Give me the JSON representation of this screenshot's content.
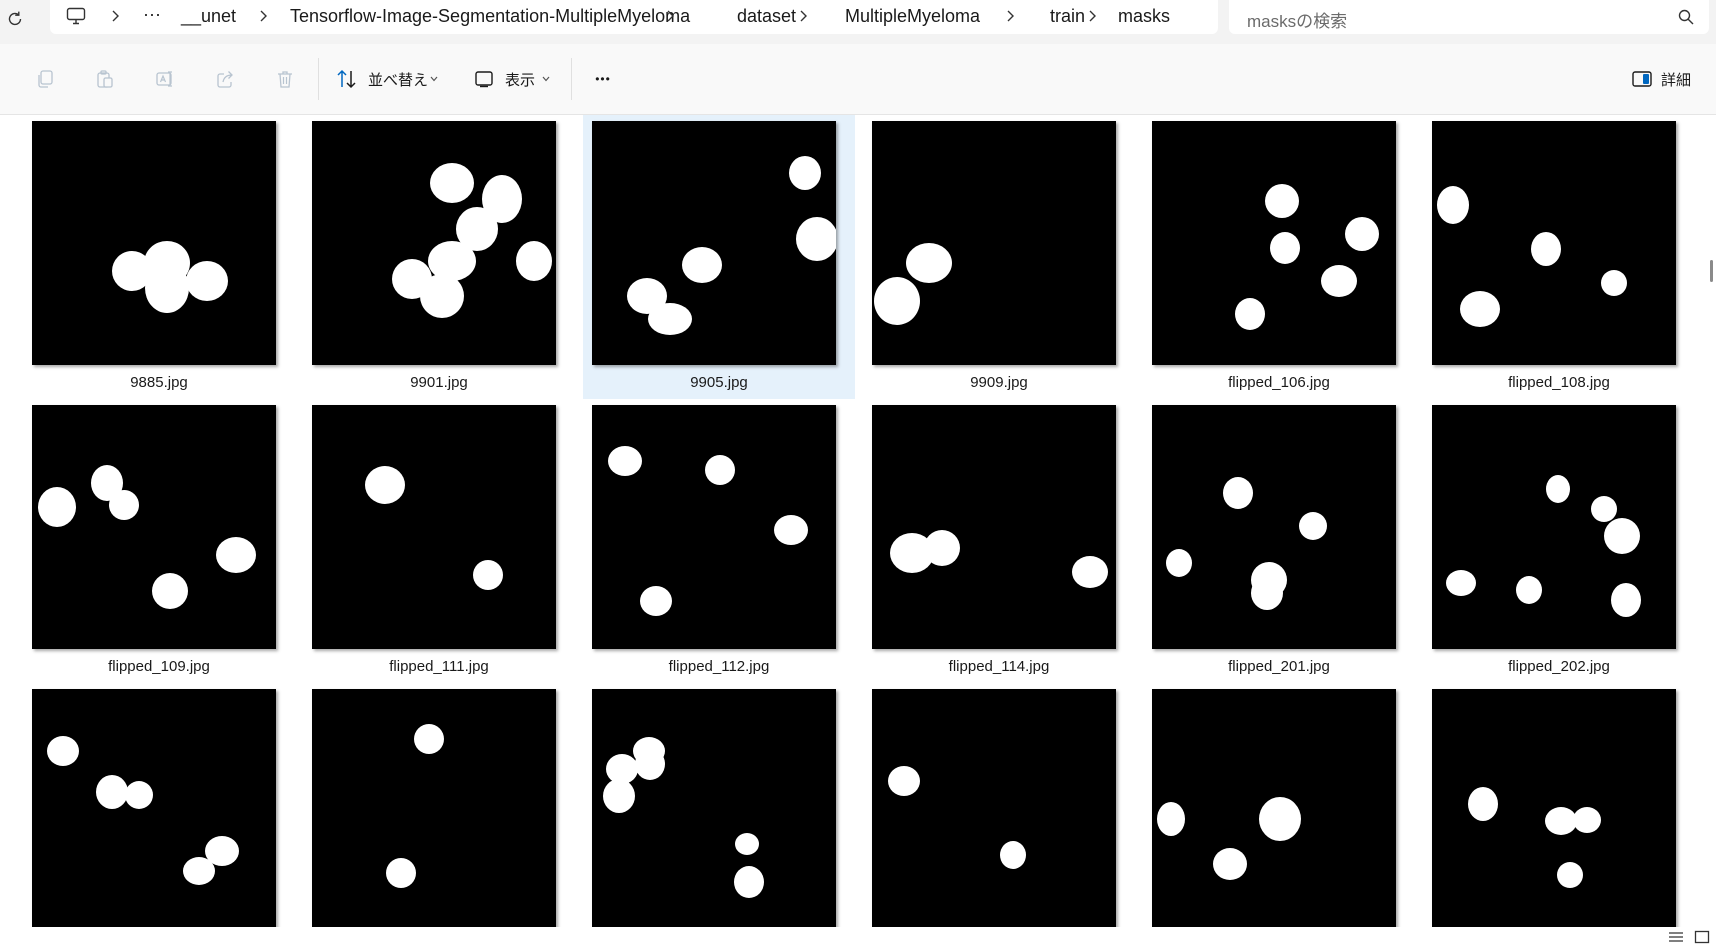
{
  "breadcrumb": {
    "overflow": "···",
    "items": [
      "__unet",
      "Tensorflow-Image-Segmentation-MultipleMyeloma",
      "dataset",
      "MultipleMyeloma",
      "train",
      "masks"
    ]
  },
  "search": {
    "placeholder": "masksの検索"
  },
  "toolbar": {
    "sort_label": "並べ替え",
    "view_label": "表示",
    "more_label": "•••",
    "details_label": "詳細"
  },
  "files": [
    {
      "name": "9885.jpg",
      "selected": false
    },
    {
      "name": "9901.jpg",
      "selected": false
    },
    {
      "name": "9905.jpg",
      "selected": true
    },
    {
      "name": "9909.jpg",
      "selected": false
    },
    {
      "name": "flipped_106.jpg",
      "selected": false
    },
    {
      "name": "flipped_108.jpg",
      "selected": false
    },
    {
      "name": "flipped_109.jpg",
      "selected": false
    },
    {
      "name": "flipped_111.jpg",
      "selected": false
    },
    {
      "name": "flipped_112.jpg",
      "selected": false
    },
    {
      "name": "flipped_114.jpg",
      "selected": false
    },
    {
      "name": "flipped_201.jpg",
      "selected": false
    },
    {
      "name": "flipped_202.jpg",
      "selected": false
    },
    {
      "name": "",
      "selected": false
    },
    {
      "name": "",
      "selected": false
    },
    {
      "name": "",
      "selected": false
    },
    {
      "name": "",
      "selected": false
    },
    {
      "name": "",
      "selected": false
    },
    {
      "name": "",
      "selected": false
    }
  ],
  "colors": {
    "selection": "#e5f1fb",
    "accent": "#0067c0"
  }
}
